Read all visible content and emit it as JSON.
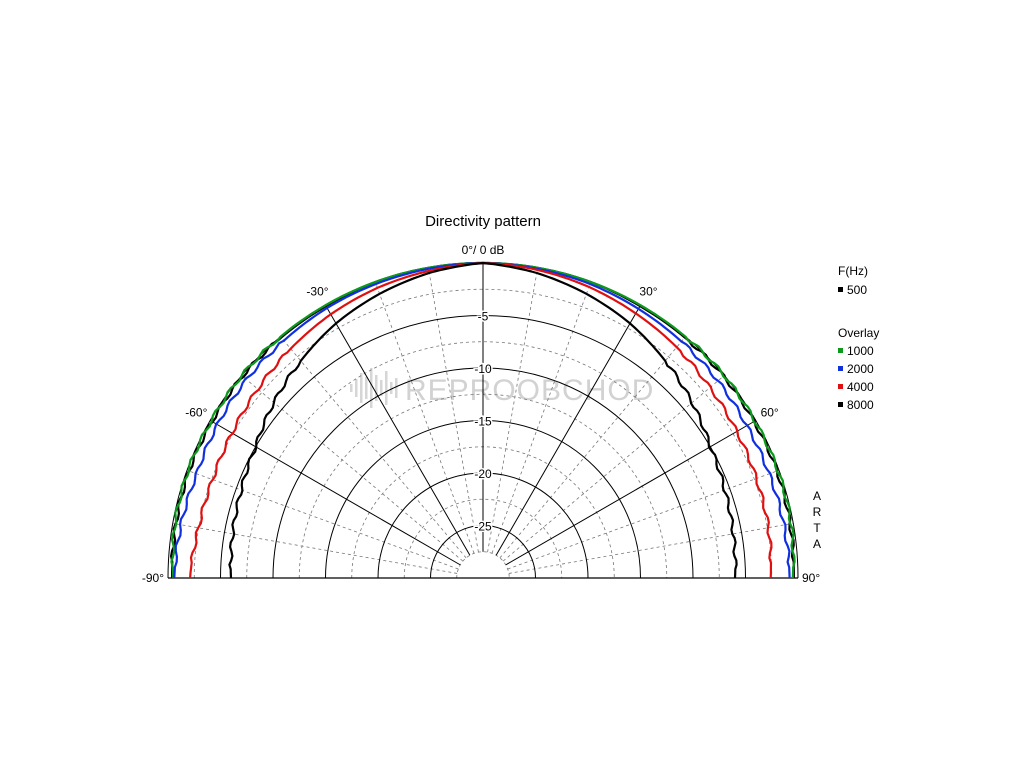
{
  "chart_data": {
    "type": "polar",
    "title": "Directivity pattern",
    "center_label": "0°/ 0 dB",
    "theta_range_deg": [
      -90,
      90
    ],
    "theta_ticks": [
      {
        "deg": -90,
        "label": "-90°"
      },
      {
        "deg": -60,
        "label": "-60°"
      },
      {
        "deg": -30,
        "label": "-30°"
      },
      {
        "deg": 30,
        "label": "30°"
      },
      {
        "deg": 60,
        "label": "60°"
      },
      {
        "deg": 90,
        "label": "90°"
      }
    ],
    "theta_major_step_deg": 30,
    "theta_minor_step_deg": 10,
    "r_range_db": [
      -30,
      0
    ],
    "r_ticks": [
      {
        "db": -5,
        "label": "-5"
      },
      {
        "db": -10,
        "label": "-10"
      },
      {
        "db": -15,
        "label": "-15"
      },
      {
        "db": -20,
        "label": "-20"
      },
      {
        "db": -25,
        "label": "-25"
      }
    ],
    "r_minor_db": [
      -2.5,
      -7.5,
      -12.5,
      -17.5,
      -22.5,
      -27.5
    ],
    "grid": true,
    "side_label": "ARTA",
    "watermark": "REPROOBCHOD",
    "legend": {
      "placement": "right",
      "header": "F(Hz)",
      "overlay_header": "Overlay"
    },
    "series": [
      {
        "name": "500",
        "group": "main",
        "color": "#000000",
        "theta_deg": [
          -90,
          -80,
          -70,
          -60,
          -50,
          -40,
          -30,
          -20,
          -10,
          0,
          10,
          20,
          30,
          40,
          50,
          60,
          70,
          80,
          90
        ],
        "values_db": [
          -0.4,
          -0.3,
          -0.2,
          -0.2,
          -0.1,
          -0.1,
          -0.1,
          0,
          0,
          0,
          0,
          0,
          -0.1,
          -0.1,
          -0.1,
          -0.2,
          -0.2,
          -0.3,
          -0.4
        ]
      },
      {
        "name": "1000",
        "group": "overlay",
        "color": "#0c9a1c",
        "theta_deg": [
          -90,
          -80,
          -70,
          -60,
          -50,
          -40,
          -30,
          -20,
          -10,
          0,
          10,
          20,
          30,
          40,
          50,
          60,
          70,
          80,
          90
        ],
        "values_db": [
          -0.5,
          -0.2,
          -0.1,
          -0.1,
          0,
          0,
          0,
          0,
          0,
          0,
          0,
          0,
          0,
          0,
          0,
          -0.1,
          -0.1,
          -0.2,
          -0.5
        ]
      },
      {
        "name": "2000",
        "group": "overlay",
        "color": "#1030e0",
        "theta_deg": [
          -90,
          -80,
          -70,
          -60,
          -50,
          -40,
          -30,
          -20,
          -10,
          0,
          10,
          20,
          30,
          40,
          50,
          60,
          70,
          80,
          90
        ],
        "values_db": [
          -0.6,
          -0.8,
          -1.0,
          -0.8,
          -0.6,
          -0.5,
          -0.3,
          -0.2,
          -0.1,
          0,
          -0.1,
          -0.2,
          -0.4,
          -0.6,
          -0.8,
          -1.0,
          -1.0,
          -0.9,
          -0.8
        ]
      },
      {
        "name": "4000",
        "group": "overlay",
        "color": "#e01010",
        "theta_deg": [
          -90,
          -80,
          -70,
          -60,
          -50,
          -40,
          -30,
          -20,
          -10,
          0,
          10,
          20,
          30,
          40,
          50,
          60,
          70,
          80,
          90
        ],
        "values_db": [
          -2.1,
          -2.5,
          -2.6,
          -2.4,
          -2.0,
          -1.5,
          -1.0,
          -0.6,
          -0.3,
          0,
          -0.2,
          -0.5,
          -0.9,
          -1.3,
          -1.8,
          -2.1,
          -2.3,
          -2.4,
          -2.6
        ]
      },
      {
        "name": "8000",
        "group": "overlay",
        "color": "#000000",
        "theta_deg": [
          -90,
          -80,
          -70,
          -60,
          -50,
          -40,
          -30,
          -20,
          -10,
          0,
          10,
          20,
          30,
          40,
          50,
          60,
          70,
          80,
          90
        ],
        "values_db": [
          -6.0,
          -5.8,
          -5.5,
          -5.0,
          -4.0,
          -3.0,
          -2.0,
          -1.2,
          -0.5,
          0,
          -0.5,
          -1.2,
          -2.0,
          -3.0,
          -4.0,
          -5.0,
          -5.5,
          -5.8,
          -6.0
        ]
      }
    ]
  }
}
